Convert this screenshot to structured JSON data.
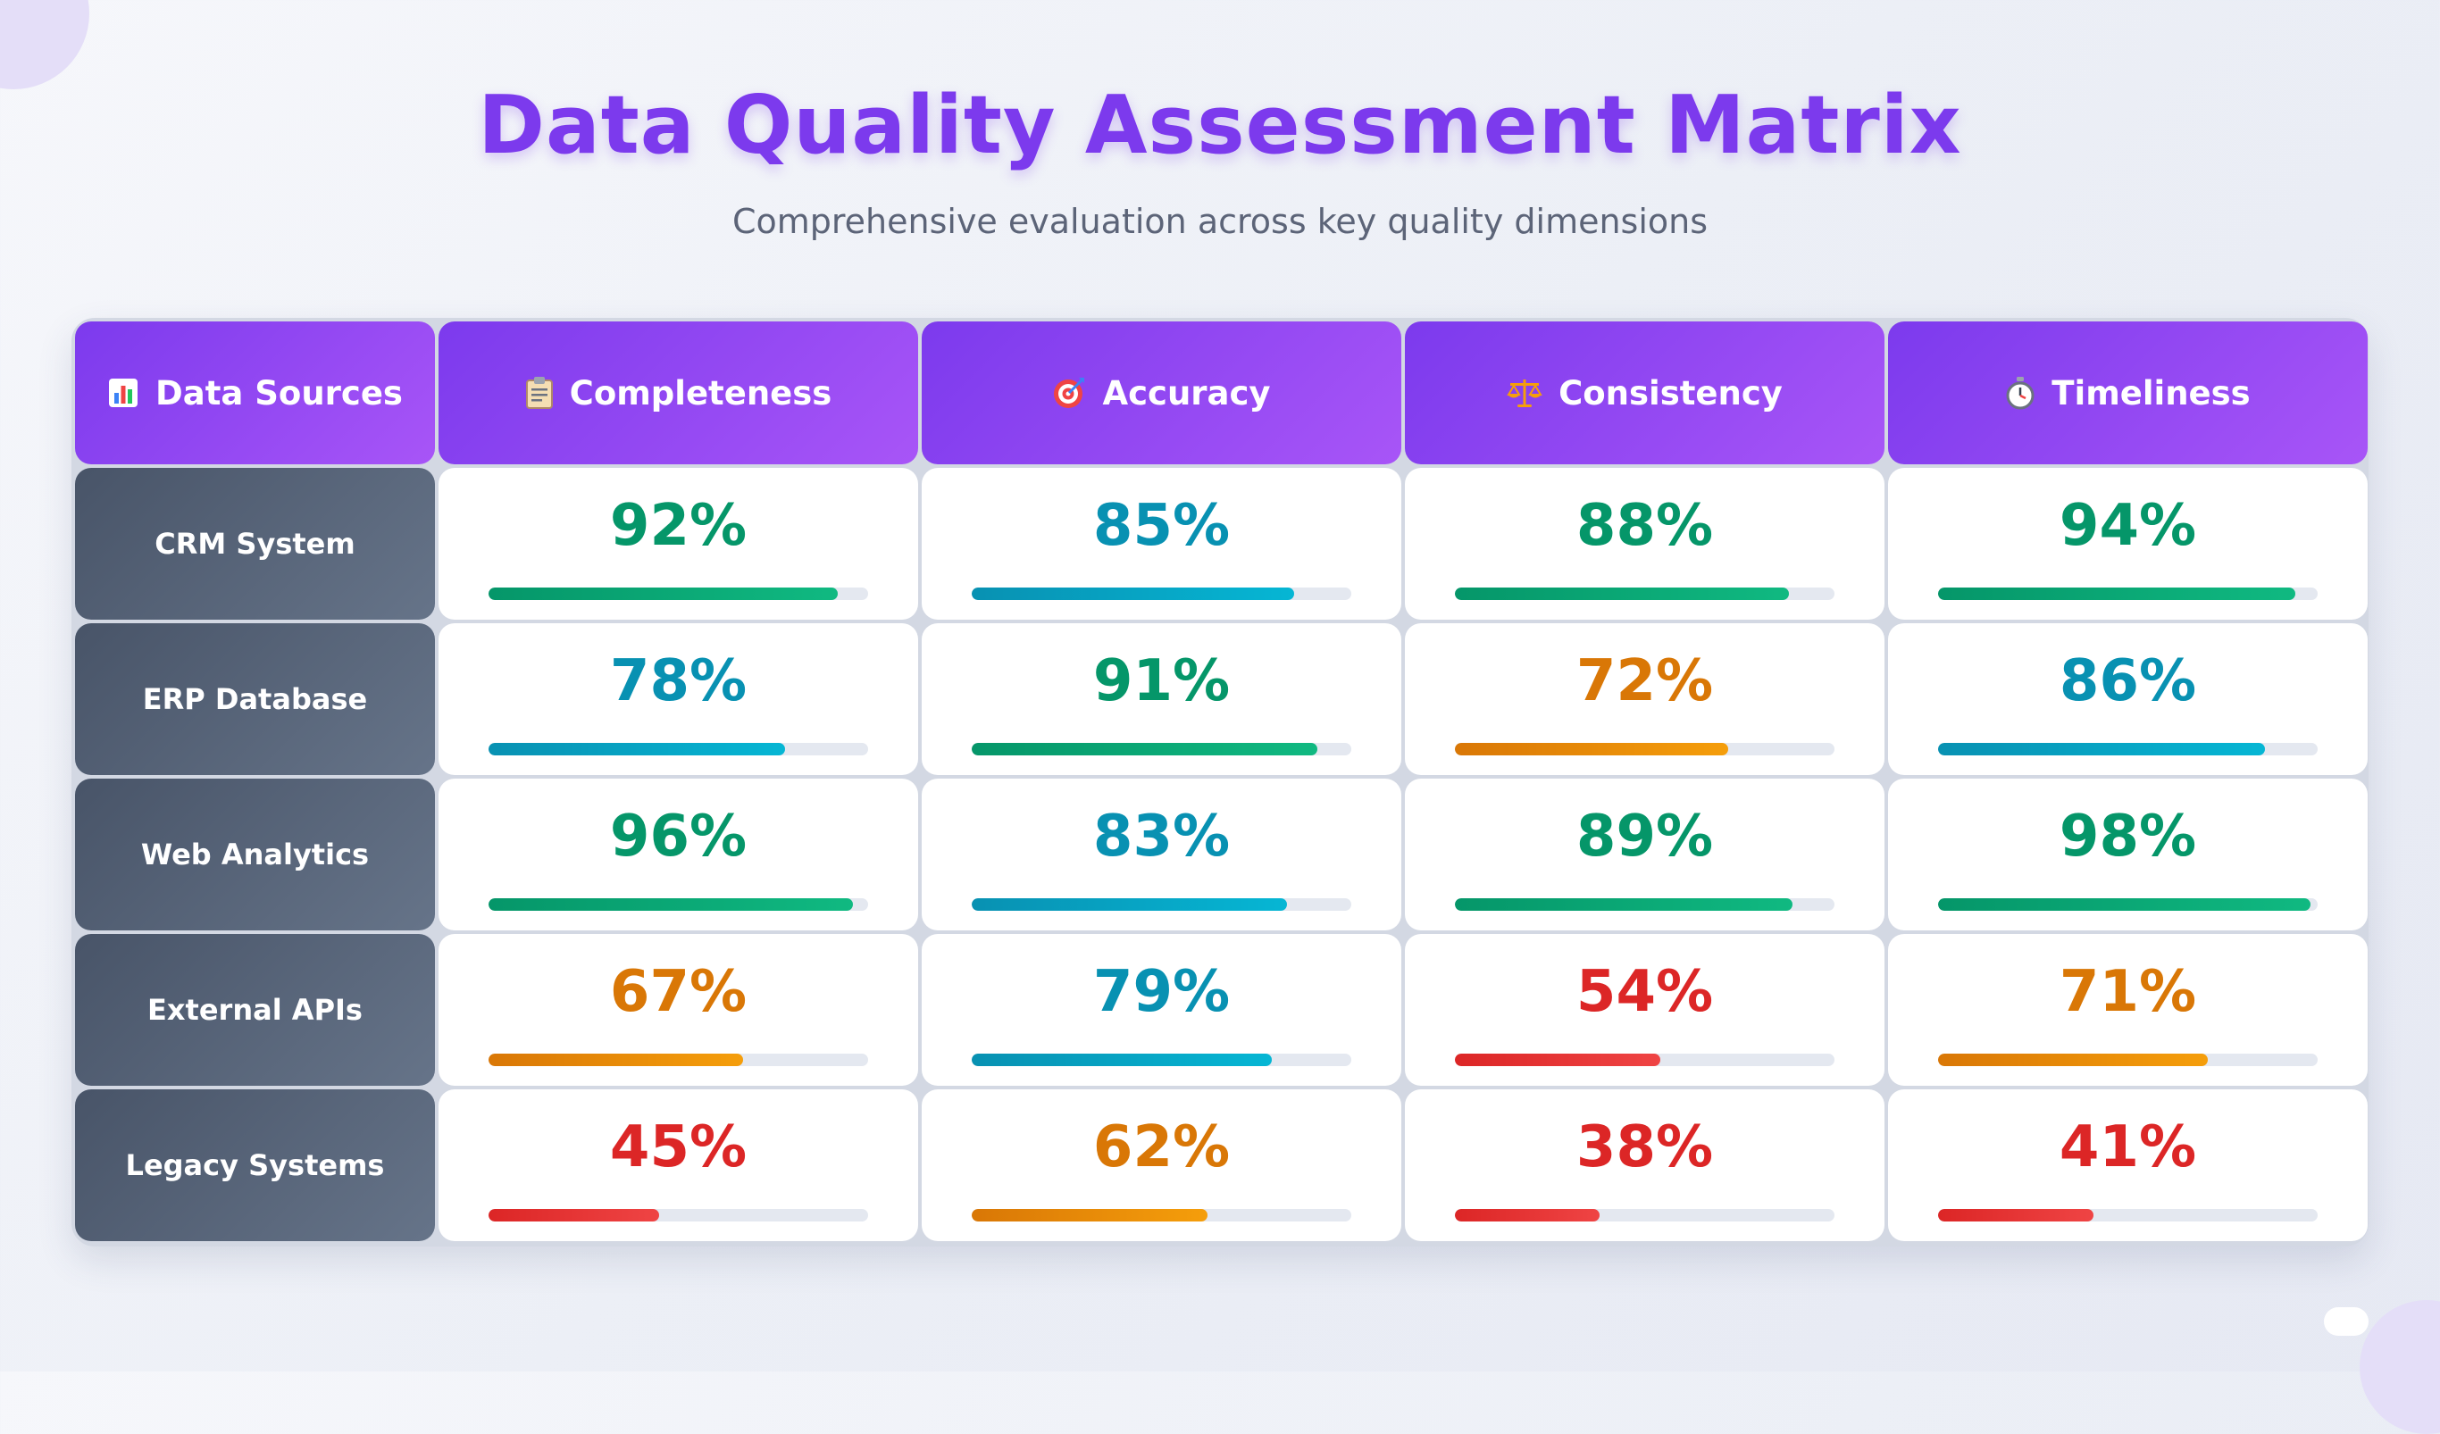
{
  "header": {
    "title": "Data Quality Assessment Matrix",
    "subtitle": "Comprehensive evaluation across key quality dimensions"
  },
  "icons": {
    "sources": "bar-chart-icon",
    "completeness": "clipboard-icon",
    "accuracy": "target-icon",
    "consistency": "scales-icon",
    "timeliness": "stopwatch-icon"
  },
  "colors": {
    "accent": "#7c3aed",
    "high": "#059669",
    "good": "#0891b2",
    "mid": "#d97706",
    "low": "#dc2626"
  },
  "chart_data": {
    "type": "table",
    "columns": [
      "Data Sources",
      "Completeness",
      "Accuracy",
      "Consistency",
      "Timeliness"
    ],
    "rows": [
      {
        "source": "CRM System",
        "values": [
          92,
          85,
          88,
          94
        ],
        "labels": [
          "92%",
          "85%",
          "88%",
          "94%"
        ]
      },
      {
        "source": "ERP Database",
        "values": [
          78,
          91,
          72,
          86
        ],
        "labels": [
          "78%",
          "91%",
          "72%",
          "86%"
        ]
      },
      {
        "source": "Web Analytics",
        "values": [
          96,
          83,
          89,
          98
        ],
        "labels": [
          "96%",
          "83%",
          "89%",
          "98%"
        ]
      },
      {
        "source": "External APIs",
        "values": [
          67,
          79,
          54,
          71
        ],
        "labels": [
          "67%",
          "79%",
          "54%",
          "71%"
        ]
      },
      {
        "source": "Legacy Systems",
        "values": [
          45,
          62,
          38,
          41
        ],
        "labels": [
          "45%",
          "62%",
          "38%",
          "41%"
        ]
      }
    ],
    "value_unit": "%",
    "ylim": [
      0,
      100
    ]
  }
}
